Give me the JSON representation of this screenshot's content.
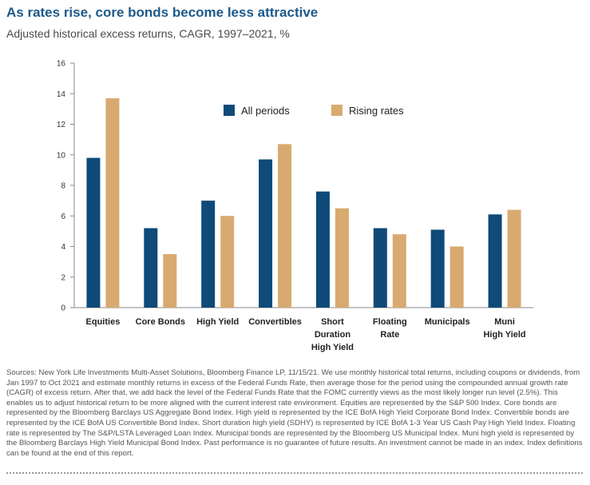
{
  "header": {
    "title": "As rates rise, core bonds become less attractive",
    "subtitle": "Adjusted historical excess returns, CAGR, 1997–2021, %"
  },
  "colors": {
    "all_periods": "#0f4a78",
    "rising_rates": "#d8aa6f",
    "title": "#1d5a8a"
  },
  "chart_data": {
    "type": "bar",
    "categories": [
      "Equities",
      "Core Bonds",
      "High Yield",
      "Convertibles",
      "Short Duration High Yield",
      "Floating Rate",
      "Municipals",
      "Muni High Yield"
    ],
    "category_lines": [
      [
        "Equities"
      ],
      [
        "Core Bonds"
      ],
      [
        "High Yield"
      ],
      [
        "Convertibles"
      ],
      [
        "Short",
        "Duration",
        "High Yield"
      ],
      [
        "Floating",
        "Rate"
      ],
      [
        "Municipals"
      ],
      [
        "Muni",
        "High Yield"
      ]
    ],
    "series": [
      {
        "name": "All periods",
        "values": [
          9.8,
          5.2,
          7.0,
          9.7,
          7.6,
          5.2,
          5.1,
          6.1
        ]
      },
      {
        "name": "Rising rates",
        "values": [
          13.7,
          3.5,
          6.0,
          10.7,
          6.5,
          4.8,
          4.0,
          6.4
        ]
      }
    ],
    "yticks": [
      0,
      2,
      4,
      6,
      8,
      10,
      12,
      14,
      16
    ],
    "ylim": [
      0,
      16
    ],
    "grid": false,
    "legend": "top-center",
    "title": "",
    "xlabel": "",
    "ylabel": ""
  },
  "footnote": {
    "sources": "Sources: New York Life Investments Multi-Asset Solutions, Bloomberg Finance LP, 11/15/21. We use monthly historical total returns, including coupons or dividends, from Jan 1997 to Oct 2021 and estimate monthly returns in excess of the Federal Funds Rate, then average those for the period using the compounded annual growth rate (CAGR) of excess return. After that, we add back the level of the Federal Funds Rate that the FOMC currently views as the most likely longer run level (2.5%). This enables us to adjust historical return to be more aligned with the current interest rate environment. Equities are represented by the S&P 500 Index. Core bonds are represented by the Bloomberg Barclays US Aggregate Bond Index. High yield is represented by the ICE BofA High Yield Corporate Bond Index. Convertible bonds are represented by the ICE BofA US Convertible Bond Index. Short duration high yield (SDHY) is represented by ICE BofA 1-3 Year US Cash Pay High Yield Index. Floating rate is represented by The S&P/LSTA Leveraged Loan Index. Municipal bonds are represented by the Bloomberg US Municipal Index. Muni high yield is represented by the Bloomberg Barclays High Yield Municipal Bond Index. Past performance is no guarantee of future results. An investment cannot be made in an index. Index definitions can be found at the end of this report."
  }
}
